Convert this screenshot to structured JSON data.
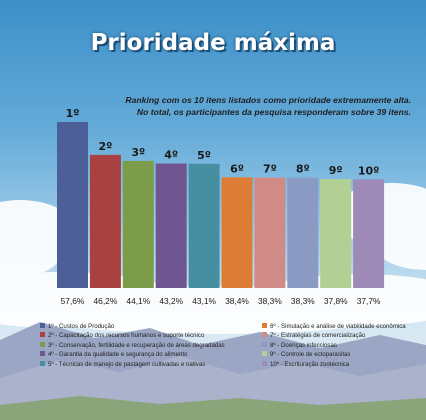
{
  "chart_data": {
    "type": "bar",
    "title": "Prioridade máxima",
    "subtitle_lines": [
      "Ranking com os 10 itens listados como prioridade extremamente alta.",
      "No total, os participantes da pesquisa responderam sobre 39 itens."
    ],
    "ranks": [
      "1º",
      "2º",
      "3º",
      "4º",
      "5º",
      "6º",
      "7º",
      "8º",
      "9º",
      "10º"
    ],
    "categories": [
      "1º - Custos de Produção",
      "2º - Capacitação dos recursos humanos e suporte técnico",
      "3º - Conservação, fertilidade e recuperação de áreas degradadas",
      "4º - Garantia da qualidade e segurança do alimento",
      "5º - Técnicas de manejo de pastagem cultivadas e nativas",
      "6º - Simulação e análise de viabilidade econômica",
      "7º - Estratégias de comercialização",
      "8º - Doenças infecciosas",
      "9º - Controle de ectoparasitas",
      "10º - Escrituração zootécnica"
    ],
    "values": [
      57.6,
      46.2,
      44.1,
      43.2,
      43.1,
      38.4,
      38.3,
      38.3,
      37.8,
      37.7
    ],
    "value_labels": [
      "57,6%",
      "46,2%",
      "44,1%",
      "43,2%",
      "43,1%",
      "38,4%",
      "38,3%",
      "38,3%",
      "37,8%",
      "37,7%"
    ],
    "colors": [
      "#4d5f99",
      "#a8413f",
      "#7c9c4a",
      "#6f5690",
      "#468fa0",
      "#dd7d35",
      "#d18b87",
      "#8b9ac3",
      "#b2cf94",
      "#9d8ab6"
    ],
    "xlabel": "",
    "ylabel": "",
    "grid": false,
    "legend": "bottom"
  }
}
